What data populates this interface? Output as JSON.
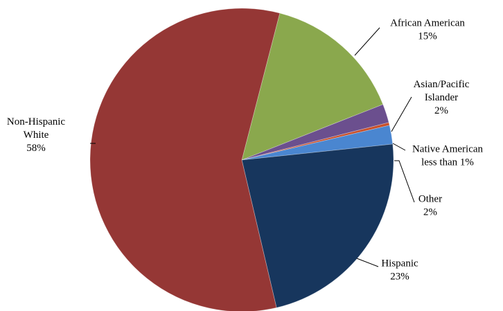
{
  "chart_data": {
    "type": "pie",
    "slices": [
      {
        "name": "African American",
        "label_lines": [
          "African American",
          "15%"
        ],
        "value": 15,
        "color": "#8aa84d"
      },
      {
        "name": "Asian/Pacific Islander",
        "label_lines": [
          "Asian/Pacific",
          "Islander",
          "2%"
        ],
        "value": 2,
        "color": "#6b4f8e"
      },
      {
        "name": "Native American",
        "label_lines": [
          "Native American",
          "less than 1%"
        ],
        "value": 0.3,
        "color": "#c8502a"
      },
      {
        "name": "Other",
        "label_lines": [
          "Other",
          "2%"
        ],
        "value": 2,
        "color": "#4a86d0"
      },
      {
        "name": "Hispanic",
        "label_lines": [
          "Hispanic",
          "23%"
        ],
        "value": 23,
        "color": "#17365d"
      },
      {
        "name": "Non-Hispanic White",
        "label_lines": [
          "Non-Hispanic",
          "White",
          "58%"
        ],
        "value": 57.7,
        "color": "#953735"
      }
    ],
    "start_direction": "top-right",
    "direction": "clockwise",
    "legend": "none",
    "leader_lines": true
  }
}
